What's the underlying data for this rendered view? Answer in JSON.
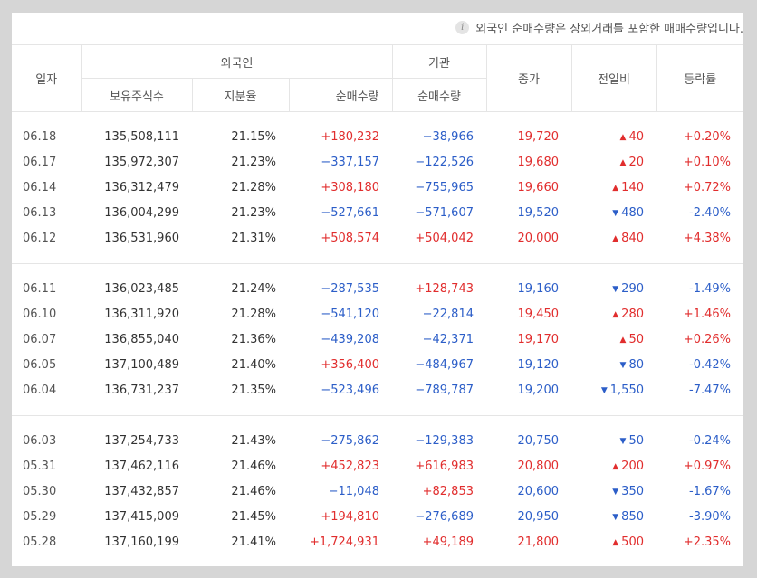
{
  "notice": {
    "icon": "info-icon",
    "text": "외국인 순매수량은 장외거래를 포함한 매매수량입니다."
  },
  "headers": {
    "date": "일자",
    "foreign": "외국인",
    "institution": "기관",
    "close": "종가",
    "change": "전일비",
    "rate": "등락률",
    "holdings": "보유주식수",
    "share": "지분율",
    "foreign_net": "순매수량",
    "inst_net": "순매수량"
  },
  "colors": {
    "up": "#e12d2d",
    "down": "#2c5ec8",
    "neutral": "#333333"
  },
  "groups": [
    [
      {
        "date": "06.18",
        "holdings": "135,508,111",
        "share": "21.15%",
        "foreign_net": "+180,232",
        "inst_net": "−38,966",
        "close": "19,720",
        "dir": "up",
        "change": "40",
        "rate": "+0.20%"
      },
      {
        "date": "06.17",
        "holdings": "135,972,307",
        "share": "21.23%",
        "foreign_net": "−337,157",
        "inst_net": "−122,526",
        "close": "19,680",
        "dir": "up",
        "change": "20",
        "rate": "+0.10%"
      },
      {
        "date": "06.14",
        "holdings": "136,312,479",
        "share": "21.28%",
        "foreign_net": "+308,180",
        "inst_net": "−755,965",
        "close": "19,660",
        "dir": "up",
        "change": "140",
        "rate": "+0.72%"
      },
      {
        "date": "06.13",
        "holdings": "136,004,299",
        "share": "21.23%",
        "foreign_net": "−527,661",
        "inst_net": "−571,607",
        "close": "19,520",
        "dir": "down",
        "change": "480",
        "rate": "-2.40%"
      },
      {
        "date": "06.12",
        "holdings": "136,531,960",
        "share": "21.31%",
        "foreign_net": "+508,574",
        "inst_net": "+504,042",
        "close": "20,000",
        "dir": "up",
        "change": "840",
        "rate": "+4.38%"
      }
    ],
    [
      {
        "date": "06.11",
        "holdings": "136,023,485",
        "share": "21.24%",
        "foreign_net": "−287,535",
        "inst_net": "+128,743",
        "close": "19,160",
        "dir": "down",
        "change": "290",
        "rate": "-1.49%"
      },
      {
        "date": "06.10",
        "holdings": "136,311,920",
        "share": "21.28%",
        "foreign_net": "−541,120",
        "inst_net": "−22,814",
        "close": "19,450",
        "dir": "up",
        "change": "280",
        "rate": "+1.46%"
      },
      {
        "date": "06.07",
        "holdings": "136,855,040",
        "share": "21.36%",
        "foreign_net": "−439,208",
        "inst_net": "−42,371",
        "close": "19,170",
        "dir": "up",
        "change": "50",
        "rate": "+0.26%"
      },
      {
        "date": "06.05",
        "holdings": "137,100,489",
        "share": "21.40%",
        "foreign_net": "+356,400",
        "inst_net": "−484,967",
        "close": "19,120",
        "dir": "down",
        "change": "80",
        "rate": "-0.42%"
      },
      {
        "date": "06.04",
        "holdings": "136,731,237",
        "share": "21.35%",
        "foreign_net": "−523,496",
        "inst_net": "−789,787",
        "close": "19,200",
        "dir": "down",
        "change": "1,550",
        "rate": "-7.47%"
      }
    ],
    [
      {
        "date": "06.03",
        "holdings": "137,254,733",
        "share": "21.43%",
        "foreign_net": "−275,862",
        "inst_net": "−129,383",
        "close": "20,750",
        "dir": "down",
        "change": "50",
        "rate": "-0.24%"
      },
      {
        "date": "05.31",
        "holdings": "137,462,116",
        "share": "21.46%",
        "foreign_net": "+452,823",
        "inst_net": "+616,983",
        "close": "20,800",
        "dir": "up",
        "change": "200",
        "rate": "+0.97%"
      },
      {
        "date": "05.30",
        "holdings": "137,432,857",
        "share": "21.46%",
        "foreign_net": "−11,048",
        "inst_net": "+82,853",
        "close": "20,600",
        "dir": "down",
        "change": "350",
        "rate": "-1.67%"
      },
      {
        "date": "05.29",
        "holdings": "137,415,009",
        "share": "21.45%",
        "foreign_net": "+194,810",
        "inst_net": "−276,689",
        "close": "20,950",
        "dir": "down",
        "change": "850",
        "rate": "-3.90%"
      },
      {
        "date": "05.28",
        "holdings": "137,160,199",
        "share": "21.41%",
        "foreign_net": "+1,724,931",
        "inst_net": "+49,189",
        "close": "21,800",
        "dir": "up",
        "change": "500",
        "rate": "+2.35%"
      }
    ]
  ]
}
